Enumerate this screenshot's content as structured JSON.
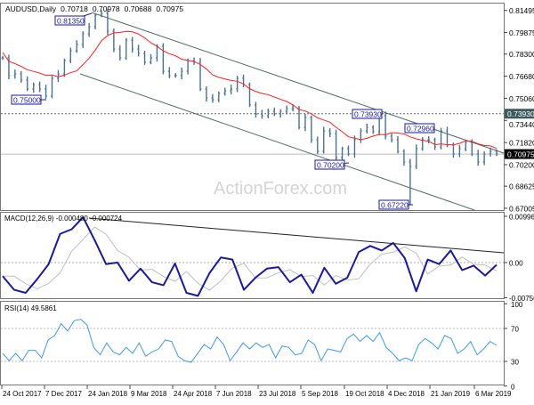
{
  "chart_data": [
    {
      "type": "ohlc",
      "title": "AUDUSD,Daily",
      "ohlc_readout": [
        "0.70718",
        "0.70978",
        "0.70688",
        "0.70975"
      ],
      "closes": [
        0.7802,
        0.7672,
        0.7685,
        0.7639,
        0.7574,
        0.7606,
        0.7574,
        0.7522,
        0.7652,
        0.7685,
        0.7782,
        0.7854,
        0.79,
        0.7978,
        0.803,
        0.8115,
        0.8128,
        0.7998,
        0.7867,
        0.7802,
        0.7932,
        0.7867,
        0.7835,
        0.777,
        0.7802,
        0.7887,
        0.7704,
        0.7672,
        0.7672,
        0.7704,
        0.7782,
        0.777,
        0.7574,
        0.7509,
        0.7496,
        0.7541,
        0.7561,
        0.7574,
        0.7652,
        0.7606,
        0.7457,
        0.7391,
        0.7378,
        0.7411,
        0.7391,
        0.7411,
        0.743,
        0.743,
        0.7293,
        0.7365,
        0.7202,
        0.7117,
        0.7267,
        0.7248,
        0.7072,
        0.7137,
        0.7098,
        0.7202,
        0.7267,
        0.7293,
        0.7261,
        0.7378,
        0.7228,
        0.7202,
        0.7117,
        0.7039,
        0.7007,
        0.7137,
        0.7202,
        0.7202,
        0.715,
        0.7267,
        0.7163,
        0.7098,
        0.7137,
        0.7183,
        0.7098,
        0.7039,
        0.7098,
        0.7117,
        0.70975
      ],
      "ylim": [
        0.665,
        0.822
      ],
      "y_ticks": [
        "0.81495",
        "0.79875",
        "0.78300",
        "0.76680",
        "0.75060",
        "0.73440",
        "0.71820",
        "0.70200",
        "0.68625",
        "0.67005"
      ],
      "y_tick_values": [
        0.81495,
        0.79875,
        0.783,
        0.7668,
        0.7506,
        0.7344,
        0.7182,
        0.702,
        0.68625,
        0.67005
      ],
      "level_line": {
        "label": "0.73930",
        "value": 0.7393
      },
      "current_price": {
        "label": "0.70975",
        "value": 0.70975
      },
      "annotations": [
        {
          "label": "0.81350",
          "value": 0.8135
        },
        {
          "label": "0.75000",
          "value": 0.75
        },
        {
          "label": "0.73930",
          "value": 0.7393
        },
        {
          "label": "0.72960",
          "value": 0.7296
        },
        {
          "label": "0.70200",
          "value": 0.702
        },
        {
          "label": "0.67220",
          "value": 0.6722
        }
      ],
      "watermark": "ActionForex.com",
      "colors": {
        "bars": "#4b7190",
        "ma": "#ff2020",
        "channel": "#4f6a66",
        "annotation": "#1a1a9a"
      }
    },
    {
      "type": "line",
      "title": "MACD(12,26,9) -0.000480 -0.000724",
      "macd": [
        -0.00293,
        -0.00586,
        -0.00651,
        -0.00358,
        -0.00033,
        0.00618,
        0.00716,
        0.00976,
        0.00488,
        -0.00033,
        0,
        -0.00391,
        -0.0013,
        -0.00423,
        -0.00488,
        -0.0002,
        -0.00651,
        -0.00716,
        -0.00228,
        0.00111,
        0.00065,
        -0.00586,
        -0.00326,
        -0.0013,
        -0.00098,
        -0.00423,
        -0.0026,
        -0.00651,
        -0.00111,
        -0.00456,
        -0.00326,
        0.00228,
        0.00358,
        0.0026,
        0.00423,
        0.00098,
        -0.00618,
        0.00065,
        -0.00033,
        0.0026,
        -0.00163,
        -0.00065,
        -0.0028,
        -0.00048
      ],
      "y_ticks": [
        "0.009964",
        "0.00",
        "-0.00756"
      ],
      "y_tick_values": [
        0.009964,
        0,
        -0.00756
      ],
      "colors": {
        "macd": "#1a1a9a",
        "signal": "#c0c0c0",
        "trendline": "#222222"
      }
    },
    {
      "type": "line",
      "title": "RSI(14) 49.5861",
      "rsi": [
        39.7,
        30.8,
        39.7,
        30.8,
        43.4,
        43.4,
        34.3,
        56,
        61.4,
        75.8,
        66.8,
        79.4,
        81.2,
        74,
        47,
        38,
        52.4,
        41.6,
        38,
        47,
        39.7,
        52.4,
        36.2,
        41.6,
        45.1,
        56,
        54.2,
        36.2,
        30.8,
        28.9,
        39.7,
        50.5,
        45.1,
        59.6,
        50.5,
        30.8,
        41.6,
        52.4,
        45.1,
        52.4,
        47,
        50.5,
        34.3,
        48.8,
        47,
        38,
        39.7,
        56,
        50.5,
        30.8,
        45.1,
        43.4,
        41.6,
        57.8,
        63.2,
        54.2,
        61.4,
        54.2,
        65,
        47,
        39.7,
        30.8,
        34.3,
        30.8,
        50.5,
        57.8,
        52.4,
        45.1,
        61.4,
        57.8,
        39.7,
        45.1,
        54.2,
        38,
        45.1,
        54.2,
        49.59
      ],
      "y_ticks": [
        "100",
        "70",
        "30",
        "0"
      ],
      "y_tick_values": [
        100,
        70,
        30,
        0
      ],
      "colors": {
        "rsi": "#3d9af0"
      }
    }
  ],
  "x_axis": {
    "tick_labels": [
      "24 Oct 2017",
      "7 Dec 2017",
      "24 Jan 2018",
      "9 Mar 2018",
      "24 Apr 2018",
      "7 Jun 2018",
      "23 Jul 2018",
      "5 Sep 2018",
      "19 Oct 2018",
      "4 Dec 2018",
      "21 Jan 2019",
      "6 Mar 2019"
    ]
  }
}
